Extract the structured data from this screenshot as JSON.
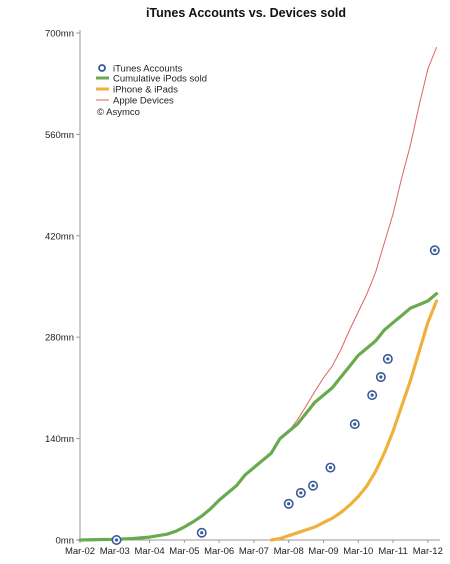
{
  "chart_data": {
    "type": "line",
    "title": "iTunes Accounts vs. Devices sold",
    "xlabel": "",
    "ylabel": "",
    "x_tick_labels": [
      "Mar-02",
      "Mar-03",
      "Mar-04",
      "Mar-05",
      "Mar-06",
      "Mar-07",
      "Mar-08",
      "Mar-09",
      "Mar-10",
      "Mar-11",
      "Mar-12"
    ],
    "x_range": [
      2002.0,
      2012.35
    ],
    "y_tick_labels": [
      "0mn",
      "140mn",
      "280mn",
      "420mn",
      "560mn",
      "700mn"
    ],
    "y_ticks": [
      0,
      140,
      280,
      420,
      560,
      700
    ],
    "ylim": [
      0,
      700
    ],
    "grid": false,
    "legend_position": "top-left",
    "annotation": "© Asymco",
    "series": [
      {
        "name": "iTunes Accounts",
        "kind": "scatter",
        "color": "#3a5a9a",
        "x": [
          2003.05,
          2005.5,
          2008.0,
          2008.35,
          2008.7,
          2009.2,
          2009.9,
          2010.4,
          2010.65,
          2010.85,
          2012.2
        ],
        "y": [
          0,
          10,
          50,
          65,
          75,
          100,
          160,
          200,
          225,
          250,
          400
        ]
      },
      {
        "name": "Cumulative iPods sold",
        "kind": "line",
        "color": "#6aaa4f",
        "x": [
          2002.0,
          2002.5,
          2003.0,
          2003.5,
          2004.0,
          2004.5,
          2004.75,
          2005.0,
          2005.25,
          2005.5,
          2005.75,
          2006.0,
          2006.25,
          2006.5,
          2006.75,
          2007.0,
          2007.25,
          2007.5,
          2007.75,
          2008.0,
          2008.25,
          2008.5,
          2008.75,
          2009.0,
          2009.25,
          2009.5,
          2009.75,
          2010.0,
          2010.25,
          2010.5,
          2010.75,
          2011.0,
          2011.25,
          2011.5,
          2011.75,
          2012.0,
          2012.25
        ],
        "y": [
          0,
          0.5,
          1,
          2,
          4,
          8,
          12,
          18,
          25,
          33,
          43,
          55,
          65,
          75,
          90,
          100,
          110,
          120,
          140,
          150,
          160,
          175,
          190,
          200,
          210,
          225,
          240,
          255,
          265,
          275,
          290,
          300,
          310,
          320,
          325,
          330,
          340
        ]
      },
      {
        "name": "iPhone & iPads",
        "kind": "line",
        "color": "#f0b03c",
        "x": [
          2007.5,
          2007.75,
          2008.0,
          2008.25,
          2008.5,
          2008.75,
          2009.0,
          2009.25,
          2009.5,
          2009.75,
          2010.0,
          2010.25,
          2010.5,
          2010.75,
          2011.0,
          2011.25,
          2011.5,
          2011.75,
          2012.0,
          2012.25
        ],
        "y": [
          0,
          2,
          6,
          10,
          14,
          18,
          24,
          30,
          38,
          48,
          60,
          75,
          95,
          120,
          150,
          185,
          220,
          260,
          300,
          330
        ]
      },
      {
        "name": "Apple Devices",
        "kind": "line",
        "color": "#e06060",
        "x": [
          2007.75,
          2008.0,
          2008.25,
          2008.5,
          2008.75,
          2009.0,
          2009.25,
          2009.5,
          2009.75,
          2010.0,
          2010.25,
          2010.5,
          2010.75,
          2011.0,
          2011.25,
          2011.5,
          2011.75,
          2012.0,
          2012.25
        ],
        "y": [
          140,
          150,
          166,
          185,
          205,
          224,
          240,
          263,
          290,
          315,
          340,
          370,
          410,
          450,
          500,
          545,
          600,
          650,
          680
        ]
      }
    ]
  }
}
